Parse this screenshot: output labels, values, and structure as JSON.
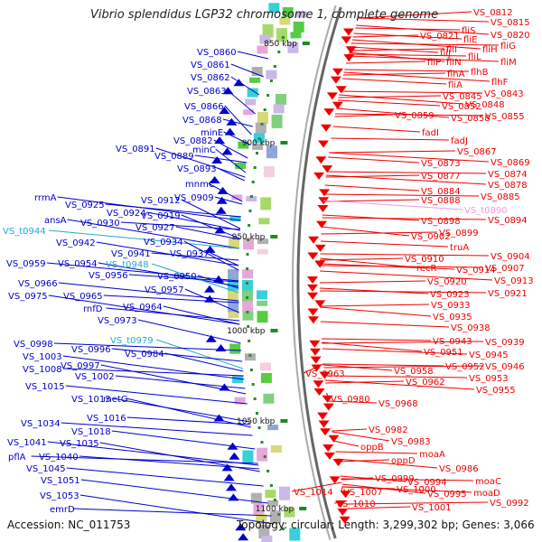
{
  "title": "Vibrio splendidus LGP32 chromosome 1, complete genome",
  "footer": {
    "accession": "Accession: NC_011753",
    "topology": "Topology: circular; Length: 3,299,302 bp; Genes: 3,066"
  },
  "scale_ticks": [
    "850 kbp",
    "900 kbp",
    "950 kbp",
    "1000 kbp",
    "1050 kbp",
    "1100 kbp"
  ],
  "colors": {
    "forward": "#0000cc",
    "reverse": "#ee0000",
    "rna": "#22aacc",
    "pseudo": "#ee99dd",
    "axis": "#888888"
  },
  "left_labels": [
    {
      "text": "VS_0860",
      "kind": "forward"
    },
    {
      "text": "VS_0861",
      "kind": "forward"
    },
    {
      "text": "VS_0862",
      "kind": "forward"
    },
    {
      "text": "VS_0863",
      "kind": "forward"
    },
    {
      "text": "VS_0866",
      "kind": "forward"
    },
    {
      "text": "VS_0868",
      "kind": "forward"
    },
    {
      "text": "minE",
      "kind": "forward"
    },
    {
      "text": "VS_0882",
      "kind": "forward"
    },
    {
      "text": "minC",
      "kind": "forward"
    },
    {
      "text": "VS_0891",
      "kind": "forward"
    },
    {
      "text": "VS_0889",
      "kind": "forward"
    },
    {
      "text": "VS_0893",
      "kind": "forward"
    },
    {
      "text": "mnmC",
      "kind": "forward"
    },
    {
      "text": "rrmA",
      "kind": "forward"
    },
    {
      "text": "VS_0912",
      "kind": "forward"
    },
    {
      "text": "VS_0909",
      "kind": "forward"
    },
    {
      "text": "VS_0925",
      "kind": "forward"
    },
    {
      "text": "VS_0924",
      "kind": "forward"
    },
    {
      "text": "VS_0919",
      "kind": "forward"
    },
    {
      "text": "ansA",
      "kind": "forward"
    },
    {
      "text": "VS_0930",
      "kind": "forward"
    },
    {
      "text": "VS_0927",
      "kind": "forward"
    },
    {
      "text": "VS_t0944",
      "kind": "rna"
    },
    {
      "text": "VS_0942",
      "kind": "forward"
    },
    {
      "text": "VS_0934",
      "kind": "forward"
    },
    {
      "text": "VS_0941",
      "kind": "forward"
    },
    {
      "text": "VS_0937",
      "kind": "forward"
    },
    {
      "text": "VS_0959",
      "kind": "forward"
    },
    {
      "text": "VS_0954",
      "kind": "forward"
    },
    {
      "text": "VS_t0948",
      "kind": "rna"
    },
    {
      "text": "VS_0956",
      "kind": "forward"
    },
    {
      "text": "VS_0950",
      "kind": "forward"
    },
    {
      "text": "VS_0966",
      "kind": "forward"
    },
    {
      "text": "VS_0957",
      "kind": "forward"
    },
    {
      "text": "VS_0975",
      "kind": "forward"
    },
    {
      "text": "VS_0965",
      "kind": "forward"
    },
    {
      "text": "rnfD",
      "kind": "forward"
    },
    {
      "text": "VS_0964",
      "kind": "forward"
    },
    {
      "text": "VS_0973",
      "kind": "forward"
    },
    {
      "text": "VS_t0979",
      "kind": "rna"
    },
    {
      "text": "VS_0998",
      "kind": "forward"
    },
    {
      "text": "VS_0996",
      "kind": "forward"
    },
    {
      "text": "VS_0984",
      "kind": "forward"
    },
    {
      "text": "VS_1003",
      "kind": "forward"
    },
    {
      "text": "VS_0997",
      "kind": "forward"
    },
    {
      "text": "VS_1008",
      "kind": "forward"
    },
    {
      "text": "VS_1002",
      "kind": "forward"
    },
    {
      "text": "VS_1015",
      "kind": "forward"
    },
    {
      "text": "VS_1013",
      "kind": "forward"
    },
    {
      "text": "metG",
      "kind": "forward"
    },
    {
      "text": "VS_1016",
      "kind": "forward"
    },
    {
      "text": "VS_1034",
      "kind": "forward"
    },
    {
      "text": "VS_1018",
      "kind": "forward"
    },
    {
      "text": "VS_1041",
      "kind": "forward"
    },
    {
      "text": "VS_1035",
      "kind": "forward"
    },
    {
      "text": "pflA",
      "kind": "forward"
    },
    {
      "text": "VS_1040",
      "kind": "forward"
    },
    {
      "text": "VS_1045",
      "kind": "forward"
    },
    {
      "text": "VS_1051",
      "kind": "forward"
    },
    {
      "text": "VS_1053",
      "kind": "forward"
    },
    {
      "text": "emrD",
      "kind": "forward"
    }
  ],
  "right_labels": [
    {
      "text": "VS_0812",
      "kind": "reverse"
    },
    {
      "text": "VS_0815",
      "kind": "reverse"
    },
    {
      "text": "fliS",
      "kind": "reverse"
    },
    {
      "text": "VS_0821",
      "kind": "reverse"
    },
    {
      "text": "VS_0820",
      "kind": "reverse"
    },
    {
      "text": "fliE",
      "kind": "reverse"
    },
    {
      "text": "fliG",
      "kind": "reverse"
    },
    {
      "text": "fliI",
      "kind": "reverse"
    },
    {
      "text": "fliH",
      "kind": "reverse"
    },
    {
      "text": "fliJ",
      "kind": "reverse"
    },
    {
      "text": "fliL",
      "kind": "reverse"
    },
    {
      "text": "fliP",
      "kind": "reverse"
    },
    {
      "text": "fliN",
      "kind": "reverse"
    },
    {
      "text": "fliM",
      "kind": "reverse"
    },
    {
      "text": "flhB",
      "kind": "reverse"
    },
    {
      "text": "flhA",
      "kind": "reverse"
    },
    {
      "text": "flhF",
      "kind": "reverse"
    },
    {
      "text": "fliA",
      "kind": "reverse"
    },
    {
      "text": "VS_0843",
      "kind": "reverse"
    },
    {
      "text": "VS_0845",
      "kind": "reverse"
    },
    {
      "text": "VS_0848",
      "kind": "reverse"
    },
    {
      "text": "VS_0852",
      "kind": "reverse"
    },
    {
      "text": "VS_0855",
      "kind": "reverse"
    },
    {
      "text": "VS_0859",
      "kind": "reverse"
    },
    {
      "text": "VS_0858",
      "kind": "reverse"
    },
    {
      "text": "fadI",
      "kind": "reverse"
    },
    {
      "text": "fadJ",
      "kind": "reverse"
    },
    {
      "text": "VS_0867",
      "kind": "reverse"
    },
    {
      "text": "VS_0869",
      "kind": "reverse"
    },
    {
      "text": "VS_0873",
      "kind": "reverse"
    },
    {
      "text": "VS_0874",
      "kind": "reverse"
    },
    {
      "text": "VS_0877",
      "kind": "reverse"
    },
    {
      "text": "VS_0878",
      "kind": "reverse"
    },
    {
      "text": "VS_0884",
      "kind": "reverse"
    },
    {
      "text": "VS_0885",
      "kind": "reverse"
    },
    {
      "text": "VS_0888",
      "kind": "reverse"
    },
    {
      "text": "VS_t0890",
      "kind": "pseudo"
    },
    {
      "text": "VS_0898",
      "kind": "reverse"
    },
    {
      "text": "VS_0894",
      "kind": "reverse"
    },
    {
      "text": "VS_0899",
      "kind": "reverse"
    },
    {
      "text": "VS_0902",
      "kind": "reverse"
    },
    {
      "text": "truA",
      "kind": "reverse"
    },
    {
      "text": "VS_0904",
      "kind": "reverse"
    },
    {
      "text": "VS_0910",
      "kind": "reverse"
    },
    {
      "text": "recR",
      "kind": "reverse"
    },
    {
      "text": "VS_0914",
      "kind": "reverse"
    },
    {
      "text": "VS_0907",
      "kind": "reverse"
    },
    {
      "text": "VS_0920",
      "kind": "reverse"
    },
    {
      "text": "VS_0913",
      "kind": "reverse"
    },
    {
      "text": "VS_0923",
      "kind": "reverse"
    },
    {
      "text": "VS_0921",
      "kind": "reverse"
    },
    {
      "text": "VS_0933",
      "kind": "reverse"
    },
    {
      "text": "VS_0935",
      "kind": "reverse"
    },
    {
      "text": "VS_0938",
      "kind": "reverse"
    },
    {
      "text": "VS_0943",
      "kind": "reverse"
    },
    {
      "text": "VS_0939",
      "kind": "reverse"
    },
    {
      "text": "VS_0951",
      "kind": "reverse"
    },
    {
      "text": "VS_0945",
      "kind": "reverse"
    },
    {
      "text": "VS_0952",
      "kind": "reverse"
    },
    {
      "text": "VS_0946",
      "kind": "reverse"
    },
    {
      "text": "VS_0963",
      "kind": "reverse"
    },
    {
      "text": "VS_0958",
      "kind": "reverse"
    },
    {
      "text": "VS_0953",
      "kind": "reverse"
    },
    {
      "text": "VS_0962",
      "kind": "reverse"
    },
    {
      "text": "VS_0955",
      "kind": "reverse"
    },
    {
      "text": "VS_0980",
      "kind": "reverse"
    },
    {
      "text": "VS_0968",
      "kind": "reverse"
    },
    {
      "text": "VS_0982",
      "kind": "reverse"
    },
    {
      "text": "VS_0983",
      "kind": "reverse"
    },
    {
      "text": "oppB",
      "kind": "reverse"
    },
    {
      "text": "moaA",
      "kind": "reverse"
    },
    {
      "text": "oppD",
      "kind": "reverse"
    },
    {
      "text": "VS_0986",
      "kind": "reverse"
    },
    {
      "text": "VS_0994",
      "kind": "reverse"
    },
    {
      "text": "moaC",
      "kind": "reverse"
    },
    {
      "text": "VS_0999",
      "kind": "reverse"
    },
    {
      "text": "VS_0995",
      "kind": "reverse"
    },
    {
      "text": "moaD",
      "kind": "reverse"
    },
    {
      "text": "VS_1000",
      "kind": "reverse"
    },
    {
      "text": "VS_0992",
      "kind": "reverse"
    },
    {
      "text": "VS_1014",
      "kind": "reverse"
    },
    {
      "text": "VS_1007",
      "kind": "reverse"
    },
    {
      "text": "VS_1010",
      "kind": "reverse"
    },
    {
      "text": "VS_1001",
      "kind": "reverse"
    }
  ]
}
